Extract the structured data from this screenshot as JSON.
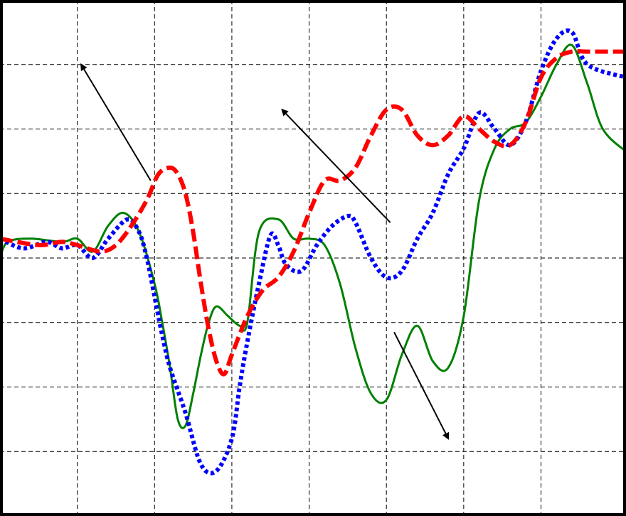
{
  "chart_data": {
    "type": "line",
    "title": "",
    "xlabel": "",
    "ylabel": "",
    "grid": true,
    "xlim": [
      0,
      8.1
    ],
    "ylim": [
      0,
      8
    ],
    "x_ticks": [
      1,
      2,
      3,
      4,
      5,
      6,
      7
    ],
    "y_ticks": [
      1,
      2,
      3,
      4,
      5,
      6,
      7
    ],
    "series": [
      {
        "color": "#ff0000",
        "style": "dashed",
        "x": [
          0,
          0.5,
          0.8,
          1.0,
          1.3,
          1.5,
          1.7,
          1.9,
          2.05,
          2.2,
          2.3,
          2.4,
          2.5,
          2.6,
          2.7,
          2.8,
          2.9,
          3.0,
          3.2,
          3.4,
          3.6,
          3.8,
          4.0,
          4.2,
          4.4,
          4.6,
          4.8,
          5.0,
          5.2,
          5.4,
          5.6,
          5.8,
          6.0,
          6.2,
          6.4,
          6.6,
          6.8,
          7.0,
          7.2,
          7.4,
          7.6,
          8.1
        ],
        "y": [
          4.3,
          4.2,
          4.25,
          4.2,
          4.1,
          4.2,
          4.5,
          4.9,
          5.3,
          5.4,
          5.3,
          5.0,
          4.4,
          3.6,
          2.9,
          2.4,
          2.2,
          2.5,
          3.1,
          3.5,
          3.7,
          4.1,
          4.7,
          5.2,
          5.2,
          5.4,
          5.9,
          6.3,
          6.3,
          5.9,
          5.75,
          5.9,
          6.2,
          6.0,
          5.8,
          5.75,
          6.1,
          6.8,
          7.1,
          7.2,
          7.2,
          7.2
        ]
      },
      {
        "color": "#0000ff",
        "style": "dotted",
        "x": [
          0,
          0.3,
          0.6,
          0.8,
          1.0,
          1.2,
          1.4,
          1.65,
          1.8,
          1.9,
          2.0,
          2.1,
          2.2,
          2.4,
          2.6,
          2.8,
          3.0,
          3.1,
          3.2,
          3.35,
          3.5,
          3.6,
          3.7,
          3.9,
          4.1,
          4.3,
          4.5,
          4.6,
          4.8,
          5.0,
          5.2,
          5.4,
          5.6,
          5.8,
          6.0,
          6.2,
          6.4,
          6.6,
          6.8,
          7.0,
          7.2,
          7.4,
          7.6,
          8.1
        ],
        "y": [
          4.3,
          4.15,
          4.25,
          4.15,
          4.2,
          4.0,
          4.3,
          4.6,
          4.4,
          4.0,
          3.4,
          2.8,
          2.3,
          1.6,
          0.8,
          0.7,
          1.2,
          2.0,
          2.7,
          3.6,
          4.35,
          4.2,
          3.9,
          3.8,
          4.2,
          4.5,
          4.65,
          4.55,
          4.0,
          3.7,
          3.8,
          4.3,
          4.7,
          5.3,
          5.7,
          6.25,
          6.0,
          5.75,
          6.1,
          6.9,
          7.4,
          7.5,
          7.0,
          6.8
        ]
      },
      {
        "color": "#008000",
        "style": "solid",
        "x": [
          0,
          0.1,
          0.4,
          0.8,
          1.0,
          1.2,
          1.4,
          1.6,
          1.8,
          2.0,
          2.1,
          2.2,
          2.3,
          2.4,
          2.5,
          2.6,
          2.7,
          2.8,
          2.95,
          3.1,
          3.2,
          3.35,
          3.6,
          3.8,
          4.0,
          4.2,
          4.4,
          4.6,
          4.8,
          5.0,
          5.2,
          5.4,
          5.6,
          5.8,
          6.0,
          6.2,
          6.4,
          6.6,
          6.8,
          7.0,
          7.2,
          7.4,
          7.6,
          7.8,
          8.1
        ],
        "y": [
          4.0,
          4.25,
          4.3,
          4.25,
          4.3,
          4.1,
          4.5,
          4.7,
          4.4,
          3.6,
          3.0,
          2.3,
          1.5,
          1.4,
          1.9,
          2.5,
          3.0,
          3.25,
          3.1,
          2.95,
          3.0,
          4.4,
          4.6,
          4.3,
          4.3,
          4.2,
          3.6,
          2.6,
          1.9,
          1.8,
          2.5,
          2.95,
          2.4,
          2.3,
          3.1,
          4.9,
          5.7,
          6.0,
          6.1,
          6.5,
          7.0,
          7.3,
          6.7,
          6.0,
          5.65
        ]
      }
    ],
    "annotations": [
      {
        "type": "arrow",
        "from": [
          1.95,
          5.2
        ],
        "to": [
          1.05,
          7.0
        ]
      },
      {
        "type": "arrow",
        "from": [
          5.05,
          4.55
        ],
        "to": [
          3.65,
          6.3
        ]
      },
      {
        "type": "arrow",
        "from": [
          5.1,
          2.85
        ],
        "to": [
          5.8,
          1.2
        ]
      }
    ]
  }
}
